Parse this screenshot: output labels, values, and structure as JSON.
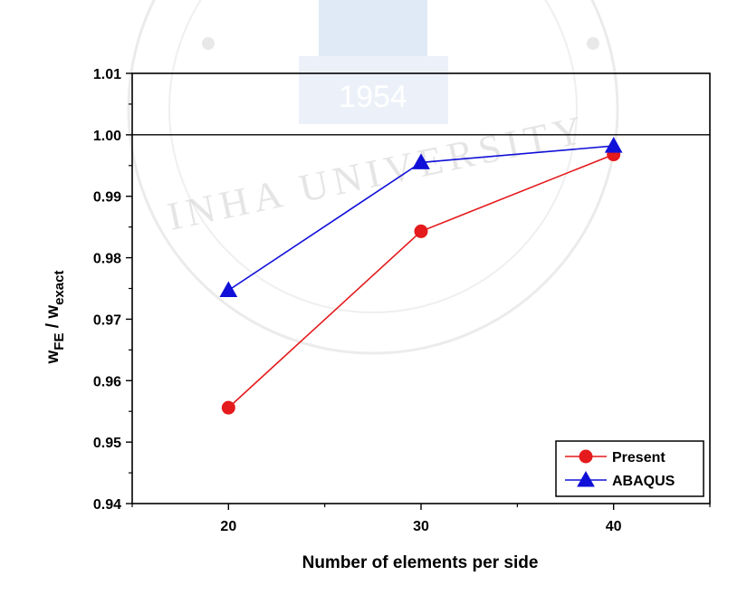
{
  "watermark": {
    "year": "1954",
    "ring_text": "INHA UNIVERSITY"
  },
  "chart_data": {
    "type": "line",
    "x": [
      20,
      30,
      40
    ],
    "xlim": [
      15,
      45
    ],
    "ylim": [
      0.94,
      1.01
    ],
    "xticks": [
      "20",
      "30",
      "40"
    ],
    "yticks": [
      "0.94",
      "0.95",
      "0.96",
      "0.97",
      "0.98",
      "0.99",
      "1.00",
      "1.01"
    ],
    "xlabel": "Number of elements per side",
    "ylabel": {
      "base1": "w",
      "sub1": "FE",
      "sep": " / ",
      "base2": "w",
      "sub2": "exact"
    },
    "reference_line": 1.0,
    "legend_position": "bottom-right",
    "series": [
      {
        "name": "Present",
        "color": "#e41a1c",
        "marker": "circle",
        "values": [
          0.9556,
          0.9843,
          0.9968
        ]
      },
      {
        "name": "ABAQUS",
        "color": "#1010d8",
        "marker": "triangle",
        "values": [
          0.9747,
          0.9955,
          0.9982
        ]
      }
    ]
  }
}
